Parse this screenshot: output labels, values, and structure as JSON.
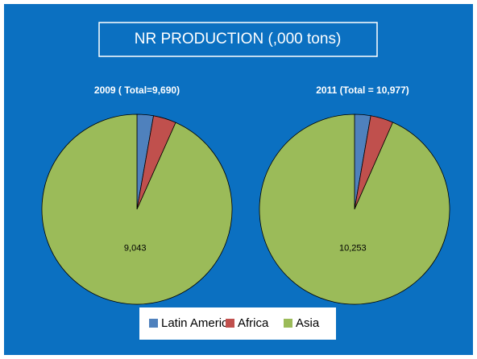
{
  "title": "NR PRODUCTION (,000 tons)",
  "chart_data": [
    {
      "type": "pie",
      "title": "2009 ( Total=9,690)",
      "categories": [
        "Latin America",
        "Africa",
        "Asia"
      ],
      "values": [
        270,
        377,
        9043
      ],
      "value_labels": [
        null,
        null,
        "9,043"
      ],
      "colors": [
        "#4f81bd",
        "#c0504d",
        "#9bbb59"
      ]
    },
    {
      "type": "pie",
      "title": "2011 (Total = 10,977)",
      "categories": [
        "Latin America",
        "Africa",
        "Asia"
      ],
      "values": [
        300,
        424,
        10253
      ],
      "value_labels": [
        null,
        null,
        "10,253"
      ],
      "colors": [
        "#4f81bd",
        "#c0504d",
        "#9bbb59"
      ]
    }
  ]
}
